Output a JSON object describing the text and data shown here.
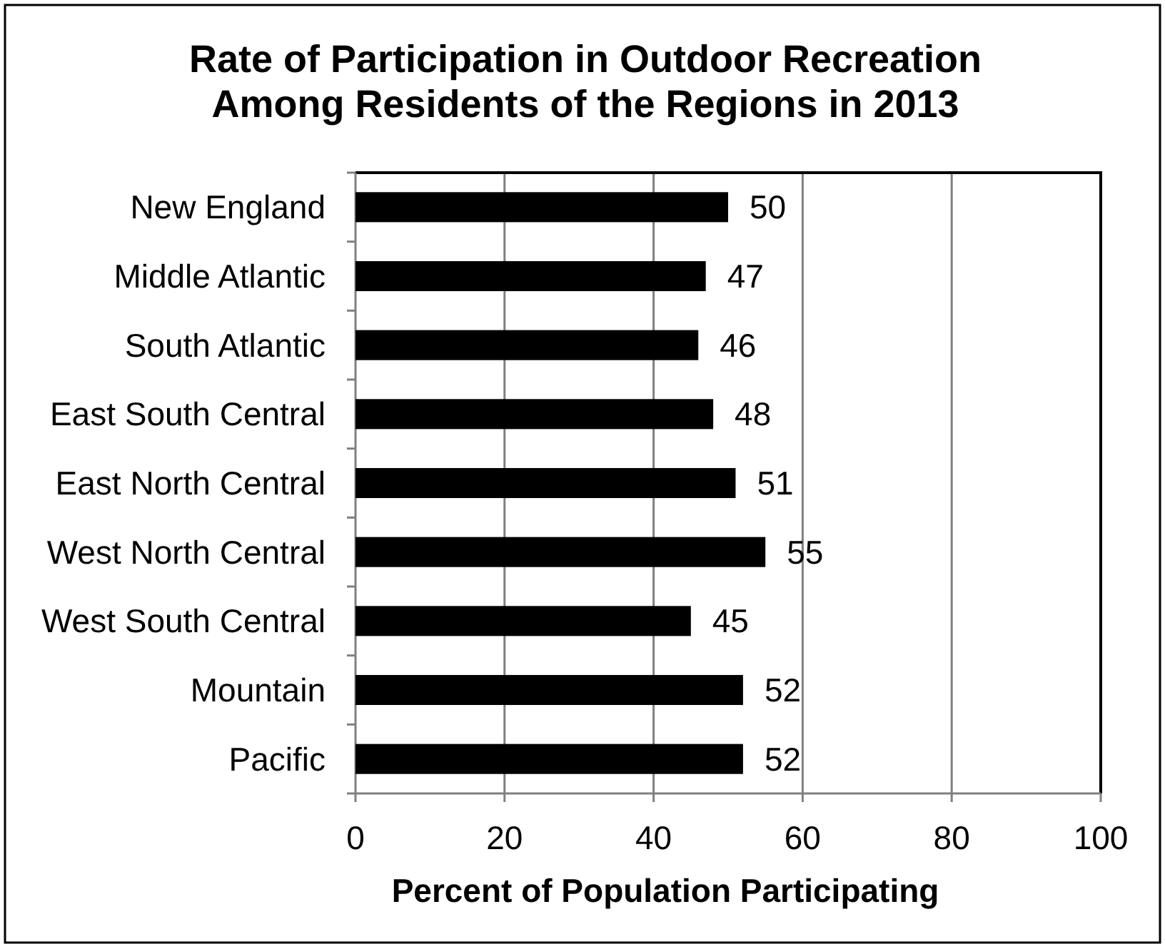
{
  "chart_data": {
    "type": "bar",
    "orientation": "horizontal",
    "title": "Rate of Participation in Outdoor Recreation\nAmong Residents of the Regions in 2013",
    "xlabel": "Percent of Population Participating",
    "categories": [
      "New England",
      "Middle Atlantic",
      "South Atlantic",
      "East South Central",
      "East North Central",
      "West North Central",
      "West South Central",
      "Mountain",
      "Pacific"
    ],
    "values": [
      50,
      47,
      46,
      48,
      51,
      55,
      45,
      52,
      52
    ],
    "color": "#000000",
    "xlim": [
      0,
      100
    ],
    "xticks": [
      0,
      20,
      40,
      60,
      80,
      100
    ],
    "grid": "x",
    "data_labels": true
  }
}
